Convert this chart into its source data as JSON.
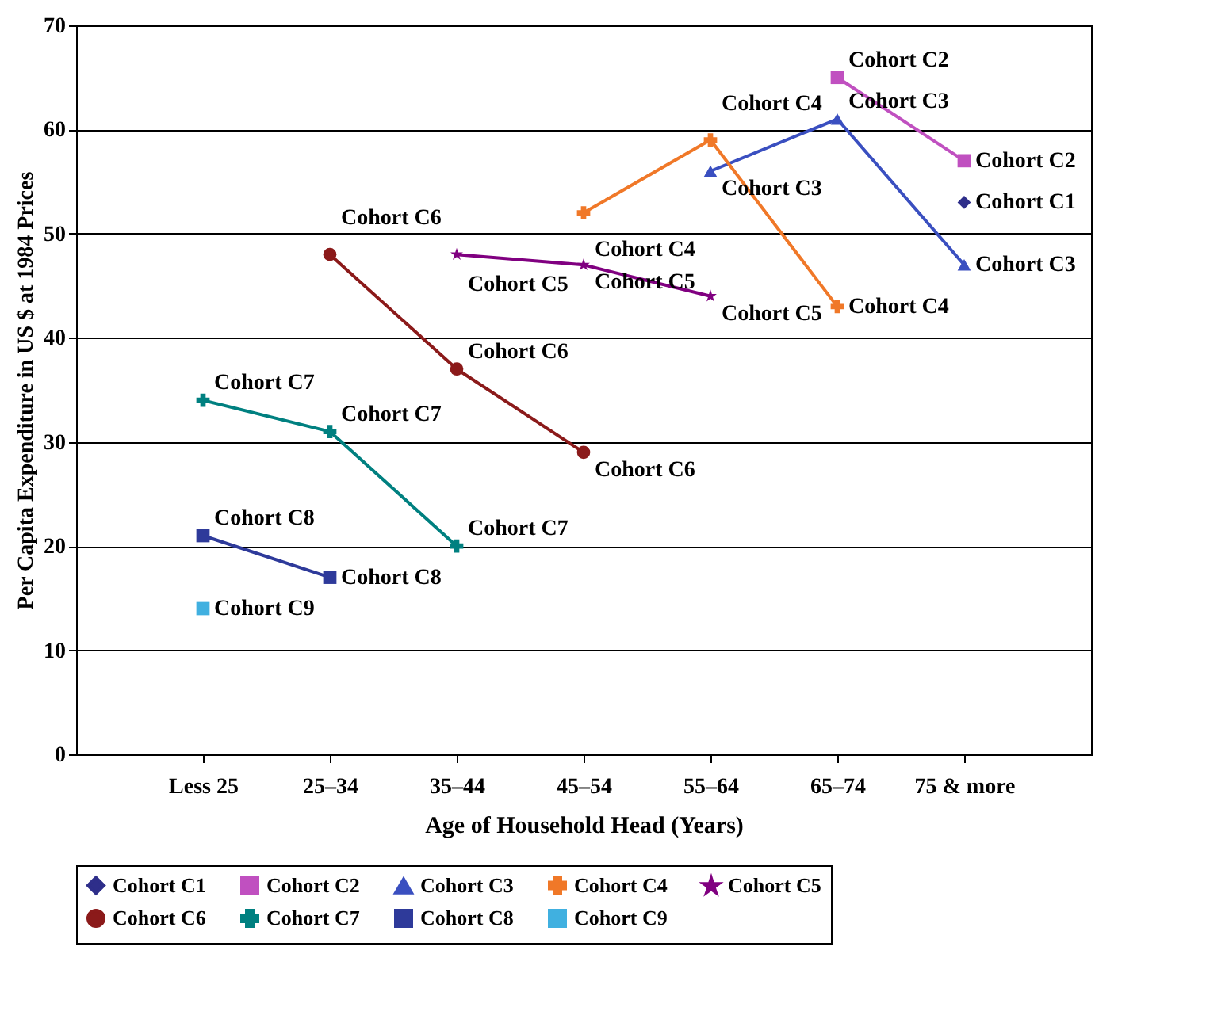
{
  "chart_data": {
    "type": "line",
    "xlabel": "Age of Household Head (Years)",
    "ylabel": "Per Capita Expenditure in US $ at 1984 Prices",
    "categories": [
      "Less 25",
      "25–34",
      "35–44",
      "45–54",
      "55–64",
      "65–74",
      "75 & more"
    ],
    "series": [
      {
        "name": "Cohort C1",
        "color": "#2e2e8a",
        "marker": "diamond",
        "values": [
          null,
          null,
          null,
          null,
          null,
          null,
          53
        ]
      },
      {
        "name": "Cohort C2",
        "color": "#c050c0",
        "marker": "square",
        "values": [
          null,
          null,
          null,
          null,
          null,
          65,
          57
        ]
      },
      {
        "name": "Cohort C3",
        "color": "#3a4fc0",
        "marker": "triangle",
        "values": [
          null,
          null,
          null,
          null,
          56,
          61,
          47
        ]
      },
      {
        "name": "Cohort C4",
        "color": "#f07828",
        "marker": "cross",
        "values": [
          null,
          null,
          null,
          52,
          59,
          43,
          null
        ]
      },
      {
        "name": "Cohort C5",
        "color": "#800080",
        "marker": "star",
        "values": [
          null,
          null,
          48,
          47,
          44,
          null,
          null
        ]
      },
      {
        "name": "Cohort C6",
        "color": "#8b1a1a",
        "marker": "circle",
        "values": [
          null,
          48,
          37,
          29,
          null,
          null,
          null
        ]
      },
      {
        "name": "Cohort C7",
        "color": "#008080",
        "marker": "cross",
        "values": [
          34,
          31,
          20,
          null,
          null,
          null,
          null
        ]
      },
      {
        "name": "Cohort C8",
        "color": "#2e3a9a",
        "marker": "square",
        "values": [
          21,
          17,
          null,
          null,
          null,
          null,
          null
        ]
      },
      {
        "name": "Cohort C9",
        "color": "#40b0e0",
        "marker": "square",
        "values": [
          14,
          null,
          null,
          null,
          null,
          null,
          null
        ]
      }
    ],
    "ylim": [
      0,
      70
    ],
    "yticks": [
      0,
      10,
      20,
      30,
      40,
      50,
      60,
      70
    ],
    "grid": "y",
    "legend": "bottom"
  }
}
